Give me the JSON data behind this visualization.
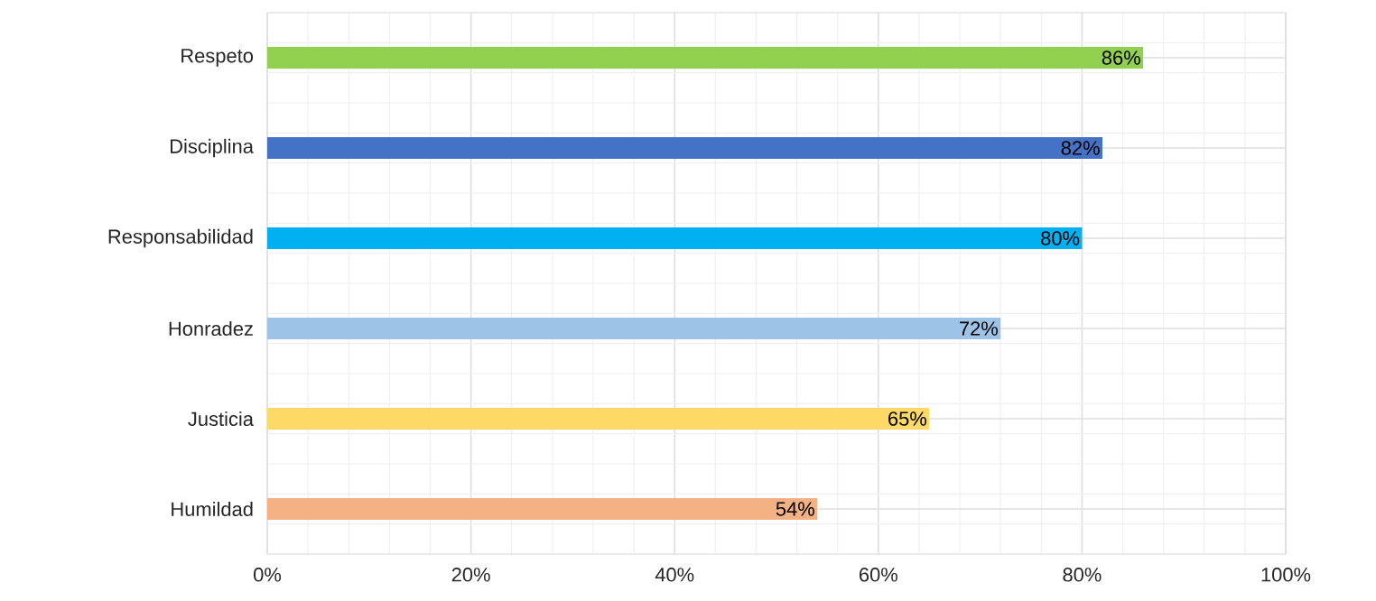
{
  "chart_data": {
    "type": "bar",
    "orientation": "horizontal",
    "categories": [
      "Respeto",
      "Disciplina",
      "Responsabilidad",
      "Honradez",
      "Justicia",
      "Humildad"
    ],
    "values": [
      86,
      82,
      80,
      72,
      65,
      54
    ],
    "colors": [
      "#92d050",
      "#4472c4",
      "#00b0f0",
      "#9dc3e6",
      "#ffd966",
      "#f4b183"
    ],
    "value_labels": [
      "86%",
      "82%",
      "80%",
      "72%",
      "65%",
      "54%"
    ],
    "xlim": [
      0,
      100
    ],
    "xticks": [
      {
        "value": 0,
        "label": "0%"
      },
      {
        "value": 20,
        "label": "20%"
      },
      {
        "value": 40,
        "label": "40%"
      },
      {
        "value": 60,
        "label": "60%"
      },
      {
        "value": 80,
        "label": "80%"
      },
      {
        "value": 100,
        "label": "100%"
      }
    ],
    "grid": true
  }
}
